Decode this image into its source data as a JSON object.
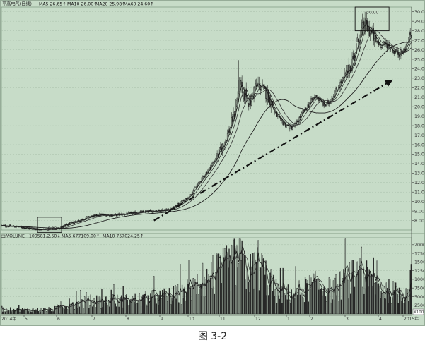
{
  "caption": "图 3-2",
  "chart_data": [
    {
      "type": "candlestick",
      "title": "",
      "legend_line": {
        "name": "平高电气(日线)",
        "ma": [
          {
            "label": "MA5",
            "value": "26.65↑",
            "color": "#111111"
          },
          {
            "label": "MA10",
            "value": "26.00↑",
            "color": "#111111"
          },
          {
            "label": "MA20",
            "value": "25.98↑",
            "color": "#111111"
          },
          {
            "label": "MA60",
            "value": "24.60↑",
            "color": "#111111"
          }
        ]
      },
      "ylim": [
        7,
        30.5
      ],
      "y_ticks": [
        8,
        9,
        10,
        11,
        12,
        13,
        14,
        15,
        16,
        17,
        18,
        19,
        20,
        21,
        22,
        23,
        24,
        25,
        26,
        27,
        28,
        29,
        30
      ],
      "y_tick_labels": [
        "8.00",
        "9.00",
        "10.00",
        "11.00",
        "12.00",
        "13.00",
        "14.00",
        "15.00",
        "16.00",
        "17.00",
        "18.00",
        "19.00",
        "20.00",
        "21.00",
        "22.00",
        "23.00",
        "24.00",
        "25.00",
        "26.00",
        "27.00",
        "28.00",
        "29.00",
        "30.00"
      ],
      "annotations": [
        {
          "text": "6.88",
          "kind": "low-box"
        },
        {
          "text": "30.00",
          "kind": "high-box"
        }
      ],
      "price_anchors": [
        [
          0,
          7.45
        ],
        [
          18,
          7.35
        ],
        [
          35,
          7.12
        ],
        [
          50,
          7.05
        ],
        [
          62,
          7.1
        ],
        [
          70,
          7.35
        ],
        [
          80,
          7.7
        ],
        [
          90,
          8.0
        ],
        [
          100,
          8.35
        ],
        [
          115,
          8.6
        ],
        [
          130,
          8.55
        ],
        [
          145,
          8.7
        ],
        [
          160,
          8.85
        ],
        [
          175,
          9.0
        ],
        [
          190,
          9.1
        ],
        [
          200,
          9.3
        ],
        [
          208,
          9.8
        ],
        [
          215,
          10.2
        ],
        [
          222,
          10.9
        ],
        [
          228,
          11.6
        ],
        [
          235,
          12.5
        ],
        [
          242,
          13.4
        ],
        [
          248,
          14.2
        ],
        [
          255,
          15.3
        ],
        [
          262,
          16.6
        ],
        [
          268,
          18.0
        ],
        [
          272,
          19.3
        ],
        [
          276,
          21.0
        ],
        [
          279,
          22.8
        ],
        [
          282,
          20.8
        ],
        [
          286,
          21.4
        ],
        [
          290,
          20.2
        ],
        [
          295,
          21.8
        ],
        [
          300,
          22.3
        ],
        [
          305,
          21.9
        ],
        [
          310,
          21.3
        ],
        [
          315,
          20.6
        ],
        [
          320,
          19.3
        ],
        [
          326,
          18.5
        ],
        [
          332,
          18.1
        ],
        [
          338,
          17.8
        ],
        [
          344,
          18.1
        ],
        [
          350,
          19.1
        ],
        [
          356,
          19.8
        ],
        [
          362,
          20.6
        ],
        [
          368,
          21.2
        ],
        [
          372,
          20.6
        ],
        [
          378,
          20.1
        ],
        [
          383,
          20.5
        ],
        [
          388,
          21.2
        ],
        [
          393,
          22.0
        ],
        [
          398,
          22.7
        ],
        [
          403,
          23.4
        ],
        [
          408,
          24.3
        ],
        [
          413,
          25.6
        ],
        [
          418,
          27.3
        ],
        [
          422,
          28.2
        ],
        [
          426,
          28.5
        ],
        [
          430,
          28.1
        ],
        [
          434,
          27.5
        ],
        [
          438,
          26.9
        ],
        [
          442,
          26.6
        ],
        [
          446,
          26.5
        ],
        [
          450,
          26.6
        ],
        [
          454,
          26.3
        ],
        [
          458,
          25.9
        ],
        [
          462,
          25.7
        ],
        [
          466,
          25.6
        ],
        [
          470,
          25.8
        ],
        [
          474,
          26.6
        ],
        [
          478,
          27.6
        ]
      ],
      "trend_arrow": {
        "from": [
          178,
          8.0
        ],
        "to": [
          455,
          22.7
        ],
        "style": "dash-dot"
      },
      "x_labels": [
        "2014年",
        "5",
        "6",
        "7",
        "8",
        "9",
        "10",
        "11",
        "12",
        "1",
        "2",
        "3",
        "4",
        "5",
        "6",
        "7",
        "2015年"
      ]
    },
    {
      "type": "bar",
      "legend_line": {
        "name": "VOLUME",
        "values": [
          {
            "label": "",
            "value": "109581.2.50↓"
          },
          {
            "label": "MA5",
            "value": "677109.00↑"
          },
          {
            "label": "MA10",
            "value": "757024.25↑"
          }
        ]
      },
      "ylim": [
        0,
        22000
      ],
      "y_ticks": [
        2500,
        5000,
        7500,
        10000,
        12500,
        15000,
        17500,
        20000
      ],
      "y_tick_labels": [
        "2500",
        "5000",
        "7500",
        "10000",
        "12500",
        "15000",
        "17500",
        "20000"
      ],
      "unit_label": "X100",
      "volume_anchors": [
        [
          0,
          1300
        ],
        [
          30,
          1100
        ],
        [
          60,
          1300
        ],
        [
          70,
          2200
        ],
        [
          90,
          3300
        ],
        [
          120,
          3600
        ],
        [
          150,
          3800
        ],
        [
          180,
          4600
        ],
        [
          200,
          5200
        ],
        [
          215,
          6400
        ],
        [
          230,
          8400
        ],
        [
          245,
          10200
        ],
        [
          260,
          12400
        ],
        [
          270,
          14200
        ],
        [
          278,
          15600
        ],
        [
          284,
          12300
        ],
        [
          290,
          11300
        ],
        [
          300,
          14500
        ],
        [
          310,
          10300
        ],
        [
          320,
          6700
        ],
        [
          330,
          5400
        ],
        [
          345,
          6100
        ],
        [
          360,
          7600
        ],
        [
          375,
          8400
        ],
        [
          385,
          6600
        ],
        [
          400,
          8800
        ],
        [
          412,
          10400
        ],
        [
          420,
          11400
        ],
        [
          430,
          9300
        ],
        [
          445,
          7100
        ],
        [
          460,
          6200
        ],
        [
          470,
          5800
        ],
        [
          478,
          8300
        ]
      ]
    }
  ]
}
